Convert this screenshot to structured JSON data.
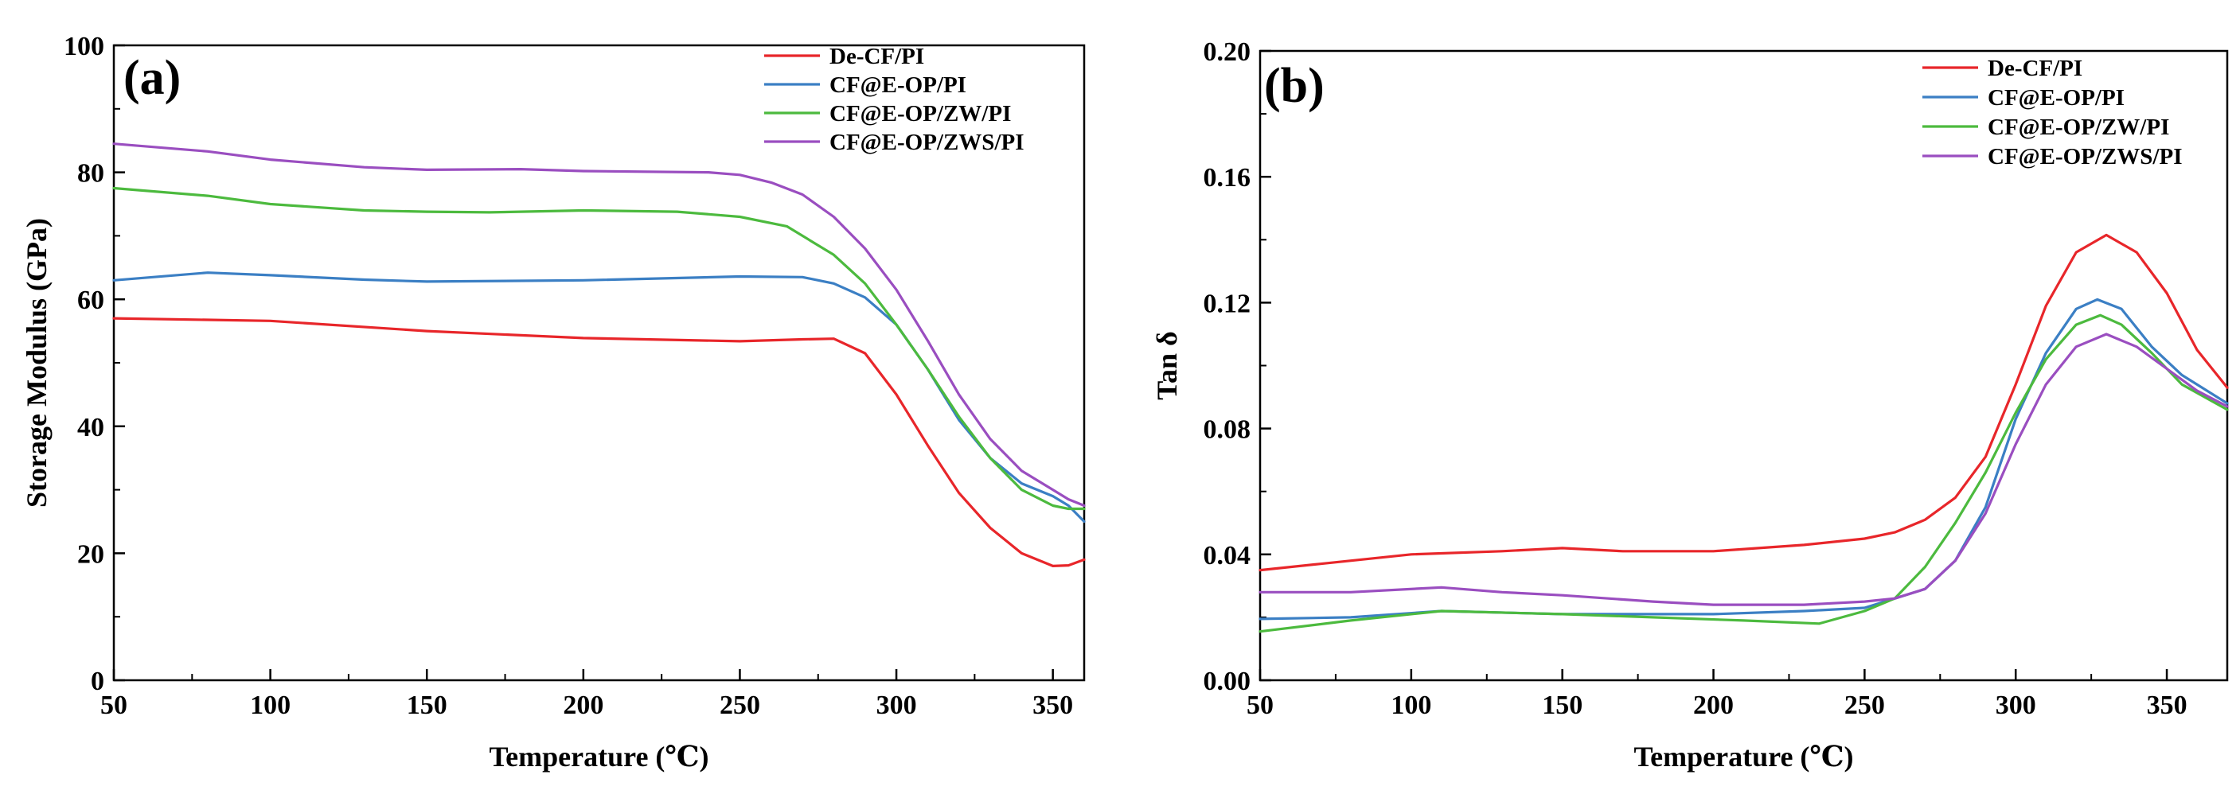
{
  "chart_data": [
    {
      "type": "line",
      "panel_label": "(a)",
      "xlabel": "Temperature (℃)",
      "ylabel": "Storage Modulus (GPa)",
      "xlim": [
        50,
        360
      ],
      "ylim": [
        0,
        100
      ],
      "xticks": [
        50,
        100,
        150,
        200,
        250,
        300,
        350
      ],
      "yticks": [
        0,
        20,
        40,
        60,
        80,
        100
      ],
      "ytick_decimals": 0,
      "legend_position": "top-right",
      "grid": false,
      "series": [
        {
          "name": "De-CF/PI",
          "color": "#e8262a",
          "points": [
            [
              50,
              57
            ],
            [
              100,
              56.6
            ],
            [
              150,
              55
            ],
            [
              200,
              53.9
            ],
            [
              250,
              53.4
            ],
            [
              270,
              53.7
            ],
            [
              280,
              53.8
            ],
            [
              290,
              51.5
            ],
            [
              300,
              45
            ],
            [
              310,
              37
            ],
            [
              320,
              29.5
            ],
            [
              330,
              24
            ],
            [
              340,
              20
            ],
            [
              350,
              18
            ],
            [
              355,
              18.1
            ],
            [
              360,
              19
            ]
          ]
        },
        {
          "name": "CF@E-OP/PI",
          "color": "#3b7fc4",
          "points": [
            [
              50,
              63
            ],
            [
              80,
              64.2
            ],
            [
              100,
              63.8
            ],
            [
              130,
              63.1
            ],
            [
              150,
              62.8
            ],
            [
              200,
              63
            ],
            [
              250,
              63.6
            ],
            [
              270,
              63.5
            ],
            [
              280,
              62.5
            ],
            [
              290,
              60.3
            ],
            [
              300,
              56
            ],
            [
              310,
              49
            ],
            [
              320,
              41
            ],
            [
              330,
              35
            ],
            [
              340,
              31
            ],
            [
              350,
              29
            ],
            [
              355,
              27.5
            ],
            [
              360,
              25
            ]
          ]
        },
        {
          "name": "CF@E-OP/ZW/PI",
          "color": "#4cba3e",
          "points": [
            [
              50,
              77.5
            ],
            [
              80,
              76.3
            ],
            [
              100,
              75
            ],
            [
              130,
              74
            ],
            [
              150,
              73.8
            ],
            [
              170,
              73.7
            ],
            [
              200,
              74
            ],
            [
              230,
              73.8
            ],
            [
              250,
              73
            ],
            [
              265,
              71.5
            ],
            [
              280,
              67
            ],
            [
              290,
              62.5
            ],
            [
              300,
              56
            ],
            [
              310,
              49
            ],
            [
              320,
              41.5
            ],
            [
              330,
              35
            ],
            [
              340,
              30
            ],
            [
              350,
              27.5
            ],
            [
              355,
              27
            ],
            [
              360,
              27
            ]
          ]
        },
        {
          "name": "CF@E-OP/ZWS/PI",
          "color": "#9a4ec0",
          "points": [
            [
              50,
              84.5
            ],
            [
              80,
              83.3
            ],
            [
              100,
              82
            ],
            [
              130,
              80.8
            ],
            [
              150,
              80.4
            ],
            [
              180,
              80.5
            ],
            [
              200,
              80.2
            ],
            [
              240,
              80
            ],
            [
              250,
              79.6
            ],
            [
              260,
              78.4
            ],
            [
              270,
              76.5
            ],
            [
              280,
              73
            ],
            [
              290,
              68
            ],
            [
              300,
              61.5
            ],
            [
              310,
              53.5
            ],
            [
              320,
              45
            ],
            [
              330,
              38
            ],
            [
              340,
              33
            ],
            [
              350,
              30
            ],
            [
              355,
              28.5
            ],
            [
              360,
              27.5
            ]
          ]
        }
      ]
    },
    {
      "type": "line",
      "panel_label": "(b)",
      "xlabel": "Temperature (℃)",
      "ylabel": "Tan δ",
      "xlim": [
        50,
        370
      ],
      "ylim": [
        0,
        0.2
      ],
      "xticks": [
        50,
        100,
        150,
        200,
        250,
        300,
        350
      ],
      "yticks": [
        0.0,
        0.04,
        0.08,
        0.12,
        0.16,
        0.2
      ],
      "ytick_decimals": 2,
      "legend_position": "top-right",
      "grid": false,
      "series": [
        {
          "name": "De-CF/PI",
          "color": "#e8262a",
          "points": [
            [
              50,
              0.035
            ],
            [
              70,
              0.037
            ],
            [
              100,
              0.04
            ],
            [
              130,
              0.041
            ],
            [
              150,
              0.042
            ],
            [
              170,
              0.041
            ],
            [
              200,
              0.041
            ],
            [
              230,
              0.043
            ],
            [
              250,
              0.045
            ],
            [
              260,
              0.047
            ],
            [
              270,
              0.051
            ],
            [
              280,
              0.058
            ],
            [
              290,
              0.071
            ],
            [
              300,
              0.094
            ],
            [
              310,
              0.119
            ],
            [
              320,
              0.136
            ],
            [
              330,
              0.1415
            ],
            [
              340,
              0.136
            ],
            [
              350,
              0.123
            ],
            [
              360,
              0.105
            ],
            [
              370,
              0.093
            ]
          ]
        },
        {
          "name": "CF@E-OP/PI",
          "color": "#3b7fc4",
          "points": [
            [
              50,
              0.0195
            ],
            [
              80,
              0.02
            ],
            [
              110,
              0.022
            ],
            [
              150,
              0.021
            ],
            [
              200,
              0.021
            ],
            [
              230,
              0.022
            ],
            [
              250,
              0.023
            ],
            [
              260,
              0.026
            ],
            [
              270,
              0.029
            ],
            [
              280,
              0.038
            ],
            [
              290,
              0.055
            ],
            [
              300,
              0.083
            ],
            [
              310,
              0.104
            ],
            [
              320,
              0.118
            ],
            [
              327,
              0.121
            ],
            [
              335,
              0.118
            ],
            [
              345,
              0.106
            ],
            [
              355,
              0.097
            ],
            [
              370,
              0.088
            ]
          ]
        },
        {
          "name": "CF@E-OP/ZW/PI",
          "color": "#4cba3e",
          "points": [
            [
              50,
              0.0155
            ],
            [
              80,
              0.019
            ],
            [
              110,
              0.022
            ],
            [
              150,
              0.021
            ],
            [
              180,
              0.02
            ],
            [
              210,
              0.019
            ],
            [
              235,
              0.018
            ],
            [
              250,
              0.022
            ],
            [
              260,
              0.026
            ],
            [
              270,
              0.036
            ],
            [
              280,
              0.05
            ],
            [
              290,
              0.066
            ],
            [
              300,
              0.085
            ],
            [
              310,
              0.102
            ],
            [
              320,
              0.113
            ],
            [
              328,
              0.116
            ],
            [
              335,
              0.113
            ],
            [
              345,
              0.104
            ],
            [
              355,
              0.094
            ],
            [
              370,
              0.086
            ]
          ]
        },
        {
          "name": "CF@E-OP/ZWS/PI",
          "color": "#9a4ec0",
          "points": [
            [
              50,
              0.028
            ],
            [
              80,
              0.028
            ],
            [
              110,
              0.0295
            ],
            [
              130,
              0.028
            ],
            [
              150,
              0.027
            ],
            [
              180,
              0.025
            ],
            [
              200,
              0.024
            ],
            [
              230,
              0.024
            ],
            [
              250,
              0.025
            ],
            [
              260,
              0.026
            ],
            [
              270,
              0.029
            ],
            [
              280,
              0.038
            ],
            [
              290,
              0.053
            ],
            [
              300,
              0.075
            ],
            [
              310,
              0.094
            ],
            [
              320,
              0.106
            ],
            [
              330,
              0.11
            ],
            [
              340,
              0.106
            ],
            [
              350,
              0.099
            ],
            [
              360,
              0.092
            ],
            [
              370,
              0.087
            ]
          ]
        }
      ]
    }
  ]
}
